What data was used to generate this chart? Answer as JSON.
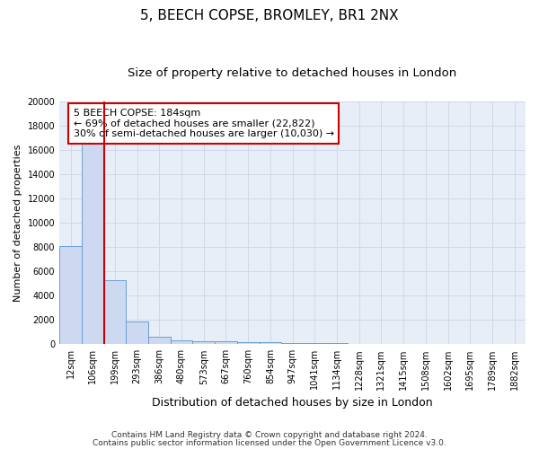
{
  "title_line1": "5, BEECH COPSE, BROMLEY, BR1 2NX",
  "title_line2": "Size of property relative to detached houses in London",
  "xlabel": "Distribution of detached houses by size in London",
  "ylabel": "Number of detached properties",
  "bar_categories": [
    "12sqm",
    "106sqm",
    "199sqm",
    "293sqm",
    "386sqm",
    "480sqm",
    "573sqm",
    "667sqm",
    "760sqm",
    "854sqm",
    "947sqm",
    "1041sqm",
    "1134sqm",
    "1228sqm",
    "1321sqm",
    "1415sqm",
    "1508sqm",
    "1602sqm",
    "1695sqm",
    "1789sqm",
    "1882sqm"
  ],
  "bar_values": [
    8100,
    16600,
    5300,
    1850,
    620,
    350,
    280,
    220,
    190,
    160,
    120,
    90,
    70,
    55,
    45,
    35,
    28,
    22,
    18,
    14,
    10
  ],
  "bar_color": "#ccd9f0",
  "bar_edge_color": "#6b9fd4",
  "vline_x": 1.5,
  "vline_color": "#cc0000",
  "ylim": [
    0,
    20000
  ],
  "yticks": [
    0,
    2000,
    4000,
    6000,
    8000,
    10000,
    12000,
    14000,
    16000,
    18000,
    20000
  ],
  "annotation_text": "5 BEECH COPSE: 184sqm\n← 69% of detached houses are smaller (22,822)\n30% of semi-detached houses are larger (10,030) →",
  "annotation_box_facecolor": "#ffffff",
  "annotation_box_edgecolor": "#cc0000",
  "footer_line1": "Contains HM Land Registry data © Crown copyright and database right 2024.",
  "footer_line2": "Contains public sector information licensed under the Open Government Licence v3.0.",
  "fig_facecolor": "#ffffff",
  "plot_facecolor": "#e8eef8",
  "grid_color": "#d0d8e8",
  "title_fontsize": 11,
  "subtitle_fontsize": 9.5,
  "tick_label_fontsize": 7,
  "ylabel_fontsize": 8,
  "xlabel_fontsize": 9,
  "annotation_fontsize": 8,
  "footer_fontsize": 6.5
}
